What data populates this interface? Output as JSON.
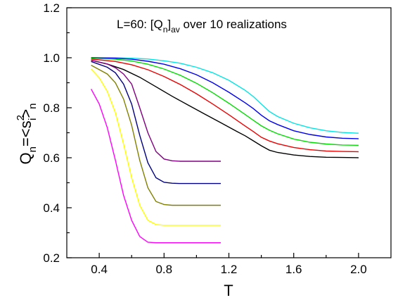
{
  "chart_data": {
    "type": "line",
    "title": "",
    "annotation": {
      "prefix": "L=60: [Q",
      "sub_n": "n",
      "mid": "]",
      "sub_av": "av",
      "suffix": " over 10 realizations"
    },
    "xlabel": "T",
    "ylabel": {
      "q": "Q",
      "q_sub": "n",
      "eq": "=<s",
      "sup": "2",
      "sub_i": "i",
      "close": ">",
      "sub_n": "n"
    },
    "xlim": [
      0.2,
      2.2
    ],
    "ylim": [
      0.2,
      1.2
    ],
    "x_ticks": [
      "0.4",
      "0.8",
      "1.2",
      "1.6",
      "2.0"
    ],
    "y_ticks": [
      "0.2",
      "0.4",
      "0.6",
      "0.8",
      "1.0",
      "1.2"
    ],
    "grid": false,
    "series": [
      {
        "color": "#00e5e5",
        "points": [
          [
            0.35,
            1.0
          ],
          [
            0.5,
            1.0
          ],
          [
            0.6,
            0.998
          ],
          [
            0.7,
            0.995
          ],
          [
            0.8,
            0.988
          ],
          [
            0.9,
            0.978
          ],
          [
            1.0,
            0.962
          ],
          [
            1.1,
            0.94
          ],
          [
            1.2,
            0.91
          ],
          [
            1.3,
            0.87
          ],
          [
            1.35,
            0.845
          ],
          [
            1.4,
            0.815
          ],
          [
            1.45,
            0.785
          ],
          [
            1.5,
            0.765
          ],
          [
            1.6,
            0.738
          ],
          [
            1.7,
            0.72
          ],
          [
            1.8,
            0.708
          ],
          [
            1.9,
            0.701
          ],
          [
            2.0,
            0.698
          ]
        ]
      },
      {
        "color": "#0000ee",
        "points": [
          [
            0.35,
            1.0
          ],
          [
            0.5,
            0.998
          ],
          [
            0.6,
            0.994
          ],
          [
            0.7,
            0.986
          ],
          [
            0.8,
            0.974
          ],
          [
            0.9,
            0.956
          ],
          [
            1.0,
            0.932
          ],
          [
            1.1,
            0.9
          ],
          [
            1.2,
            0.862
          ],
          [
            1.3,
            0.82
          ],
          [
            1.35,
            0.797
          ],
          [
            1.4,
            0.77
          ],
          [
            1.45,
            0.748
          ],
          [
            1.5,
            0.733
          ],
          [
            1.6,
            0.708
          ],
          [
            1.7,
            0.693
          ],
          [
            1.8,
            0.683
          ],
          [
            1.9,
            0.678
          ],
          [
            2.0,
            0.676
          ]
        ]
      },
      {
        "color": "#00dd00",
        "points": [
          [
            0.35,
            0.998
          ],
          [
            0.5,
            0.994
          ],
          [
            0.6,
            0.987
          ],
          [
            0.7,
            0.974
          ],
          [
            0.8,
            0.955
          ],
          [
            0.9,
            0.93
          ],
          [
            1.0,
            0.898
          ],
          [
            1.1,
            0.86
          ],
          [
            1.2,
            0.818
          ],
          [
            1.3,
            0.773
          ],
          [
            1.35,
            0.75
          ],
          [
            1.4,
            0.728
          ],
          [
            1.45,
            0.71
          ],
          [
            1.5,
            0.696
          ],
          [
            1.6,
            0.675
          ],
          [
            1.7,
            0.662
          ],
          [
            1.8,
            0.655
          ],
          [
            1.9,
            0.651
          ],
          [
            2.0,
            0.65
          ]
        ]
      },
      {
        "color": "#ee0000",
        "points": [
          [
            0.35,
            0.995
          ],
          [
            0.5,
            0.985
          ],
          [
            0.6,
            0.972
          ],
          [
            0.7,
            0.952
          ],
          [
            0.8,
            0.925
          ],
          [
            0.9,
            0.893
          ],
          [
            1.0,
            0.856
          ],
          [
            1.1,
            0.815
          ],
          [
            1.2,
            0.772
          ],
          [
            1.3,
            0.727
          ],
          [
            1.35,
            0.705
          ],
          [
            1.4,
            0.682
          ],
          [
            1.45,
            0.667
          ],
          [
            1.5,
            0.656
          ],
          [
            1.6,
            0.641
          ],
          [
            1.7,
            0.632
          ],
          [
            1.8,
            0.627
          ],
          [
            1.9,
            0.625
          ],
          [
            2.0,
            0.624
          ]
        ]
      },
      {
        "color": "#000000",
        "points": [
          [
            0.35,
            0.99
          ],
          [
            0.45,
            0.975
          ],
          [
            0.55,
            0.953
          ],
          [
            0.65,
            0.922
          ],
          [
            0.75,
            0.884
          ],
          [
            0.85,
            0.846
          ],
          [
            0.95,
            0.81
          ],
          [
            1.05,
            0.775
          ],
          [
            1.15,
            0.74
          ],
          [
            1.25,
            0.705
          ],
          [
            1.3,
            0.688
          ],
          [
            1.35,
            0.668
          ],
          [
            1.4,
            0.648
          ],
          [
            1.45,
            0.63
          ],
          [
            1.5,
            0.621
          ],
          [
            1.6,
            0.611
          ],
          [
            1.7,
            0.605
          ],
          [
            1.8,
            0.602
          ],
          [
            1.9,
            0.601
          ],
          [
            2.0,
            0.6
          ]
        ]
      },
      {
        "color": "#800080",
        "points": [
          [
            0.35,
            0.99
          ],
          [
            0.45,
            0.975
          ],
          [
            0.5,
            0.96
          ],
          [
            0.55,
            0.935
          ],
          [
            0.6,
            0.895
          ],
          [
            0.65,
            0.8
          ],
          [
            0.7,
            0.7
          ],
          [
            0.75,
            0.625
          ],
          [
            0.8,
            0.595
          ],
          [
            0.85,
            0.588
          ],
          [
            0.9,
            0.586
          ],
          [
            1.0,
            0.586
          ],
          [
            1.1,
            0.586
          ],
          [
            1.15,
            0.586
          ]
        ]
      },
      {
        "color": "#000080",
        "points": [
          [
            0.35,
            0.985
          ],
          [
            0.45,
            0.962
          ],
          [
            0.5,
            0.94
          ],
          [
            0.55,
            0.895
          ],
          [
            0.6,
            0.815
          ],
          [
            0.65,
            0.69
          ],
          [
            0.7,
            0.58
          ],
          [
            0.75,
            0.52
          ],
          [
            0.8,
            0.502
          ],
          [
            0.85,
            0.498
          ],
          [
            0.9,
            0.497
          ],
          [
            1.0,
            0.497
          ],
          [
            1.1,
            0.497
          ],
          [
            1.15,
            0.497
          ]
        ]
      },
      {
        "color": "#808000",
        "points": [
          [
            0.35,
            0.97
          ],
          [
            0.45,
            0.935
          ],
          [
            0.5,
            0.9
          ],
          [
            0.55,
            0.835
          ],
          [
            0.6,
            0.73
          ],
          [
            0.65,
            0.59
          ],
          [
            0.7,
            0.48
          ],
          [
            0.75,
            0.425
          ],
          [
            0.8,
            0.413
          ],
          [
            0.85,
            0.41
          ],
          [
            0.9,
            0.41
          ],
          [
            1.0,
            0.41
          ],
          [
            1.1,
            0.41
          ],
          [
            1.15,
            0.41
          ]
        ]
      },
      {
        "color": "#ffff00",
        "points": [
          [
            0.35,
            0.955
          ],
          [
            0.4,
            0.92
          ],
          [
            0.45,
            0.865
          ],
          [
            0.5,
            0.78
          ],
          [
            0.55,
            0.655
          ],
          [
            0.6,
            0.52
          ],
          [
            0.65,
            0.41
          ],
          [
            0.7,
            0.35
          ],
          [
            0.75,
            0.333
          ],
          [
            0.8,
            0.33
          ],
          [
            0.9,
            0.33
          ],
          [
            1.0,
            0.33
          ],
          [
            1.1,
            0.33
          ],
          [
            1.15,
            0.33
          ]
        ]
      },
      {
        "color": "#ff00ff",
        "points": [
          [
            0.35,
            0.875
          ],
          [
            0.4,
            0.815
          ],
          [
            0.45,
            0.72
          ],
          [
            0.5,
            0.59
          ],
          [
            0.55,
            0.45
          ],
          [
            0.6,
            0.35
          ],
          [
            0.65,
            0.285
          ],
          [
            0.7,
            0.262
          ],
          [
            0.75,
            0.26
          ],
          [
            0.8,
            0.26
          ],
          [
            0.9,
            0.26
          ],
          [
            1.0,
            0.26
          ],
          [
            1.1,
            0.26
          ],
          [
            1.15,
            0.26
          ]
        ]
      }
    ]
  }
}
